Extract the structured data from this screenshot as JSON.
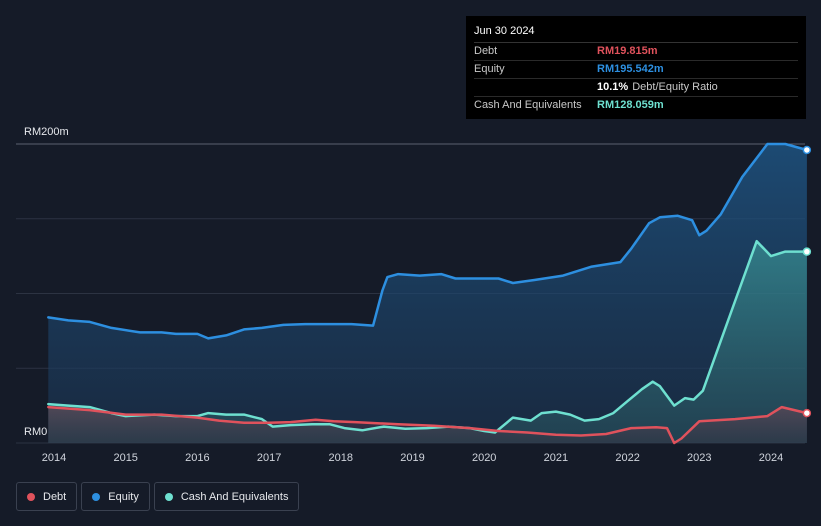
{
  "tooltip": {
    "date": "Jun 30 2024",
    "debt_label": "Debt",
    "debt_value": "RM19.815m",
    "equity_label": "Equity",
    "equity_value": "RM195.542m",
    "ratio_value": "10.1%",
    "ratio_label": "Debt/Equity Ratio",
    "cash_label": "Cash And Equivalents",
    "cash_value": "RM128.059m"
  },
  "legend": {
    "debt": "Debt",
    "equity": "Equity",
    "cash": "Cash And Equivalents"
  },
  "colors": {
    "debt": "#e0525c",
    "equity": "#2d8fe0",
    "cash": "#6ee0d0",
    "background": "#151b28"
  },
  "chart_data": {
    "type": "area",
    "title": "",
    "xlabel": "",
    "ylabel": "",
    "y_tick_labels": [
      {
        "value": 200,
        "label": "RM200m"
      },
      {
        "value": 0,
        "label": "RM0"
      }
    ],
    "ylim": [
      0,
      200
    ],
    "xlim": [
      2013.92,
      2024.5
    ],
    "x_ticks": [
      2014,
      2015,
      2016,
      2017,
      2018,
      2019,
      2020,
      2021,
      2022,
      2023,
      2024
    ],
    "grid": true,
    "legend_position": "bottom-left",
    "series": [
      {
        "name": "Equity",
        "x": [
          2013.92,
          2014.2,
          2014.5,
          2014.8,
          2015.2,
          2015.5,
          2015.7,
          2016.0,
          2016.15,
          2016.4,
          2016.65,
          2016.9,
          2017.2,
          2017.5,
          2017.8,
          2018.15,
          2018.45,
          2018.58,
          2018.65,
          2018.8,
          2019.1,
          2019.4,
          2019.6,
          2019.9,
          2020.2,
          2020.4,
          2020.7,
          2021.1,
          2021.5,
          2021.9,
          2022.05,
          2022.3,
          2022.45,
          2022.7,
          2022.9,
          2023.0,
          2023.1,
          2023.3,
          2023.6,
          2023.95,
          2024.2,
          2024.5
        ],
        "values": [
          84,
          82,
          81,
          77,
          74,
          74,
          73,
          73,
          70,
          72,
          76,
          77,
          79,
          79.5,
          79.5,
          79.5,
          78.5,
          102,
          111,
          113,
          112,
          113,
          110,
          110,
          110,
          107,
          109,
          112,
          118,
          121,
          130,
          147,
          151,
          152,
          149,
          139,
          142,
          153,
          178,
          200,
          200,
          196
        ]
      },
      {
        "name": "Cash And Equivalents",
        "x": [
          2013.92,
          2014.2,
          2014.5,
          2014.8,
          2015.0,
          2015.4,
          2015.7,
          2016.0,
          2016.15,
          2016.4,
          2016.65,
          2016.9,
          2017.05,
          2017.3,
          2017.6,
          2017.85,
          2018.05,
          2018.3,
          2018.6,
          2018.9,
          2019.2,
          2019.5,
          2019.8,
          2020.0,
          2020.15,
          2020.4,
          2020.65,
          2020.8,
          2021.0,
          2021.2,
          2021.4,
          2021.6,
          2021.8,
          2022.0,
          2022.2,
          2022.35,
          2022.45,
          2022.65,
          2022.8,
          2022.92,
          2023.05,
          2023.2,
          2023.5,
          2023.8,
          2024.0,
          2024.2,
          2024.5
        ],
        "values": [
          26,
          25,
          24,
          20,
          18,
          19,
          18,
          18,
          20,
          19,
          19,
          16,
          11,
          12,
          12.5,
          12.5,
          10,
          8.5,
          11,
          9.5,
          10,
          11,
          10,
          8,
          7,
          17,
          15,
          20,
          21,
          19,
          15,
          16,
          20,
          28,
          36,
          41,
          38,
          25,
          30,
          29,
          35,
          55,
          95,
          135,
          125,
          128,
          128
        ]
      },
      {
        "name": "Debt",
        "x": [
          2013.92,
          2014.5,
          2015.0,
          2015.5,
          2016.0,
          2016.3,
          2016.65,
          2017.0,
          2017.3,
          2017.65,
          2017.9,
          2018.2,
          2018.8,
          2019.3,
          2019.8,
          2020.2,
          2020.6,
          2021.0,
          2021.35,
          2021.7,
          2022.05,
          2022.4,
          2022.55,
          2022.65,
          2022.75,
          2023.0,
          2023.5,
          2023.95,
          2024.15,
          2024.5
        ],
        "values": [
          24,
          22,
          19,
          19,
          17,
          15,
          13.5,
          13.5,
          14,
          15.5,
          14.5,
          14,
          12.5,
          11.5,
          10,
          8,
          7,
          5.5,
          5,
          6,
          10,
          10.5,
          10,
          0,
          3,
          14.5,
          16,
          18,
          24,
          20
        ]
      }
    ]
  }
}
